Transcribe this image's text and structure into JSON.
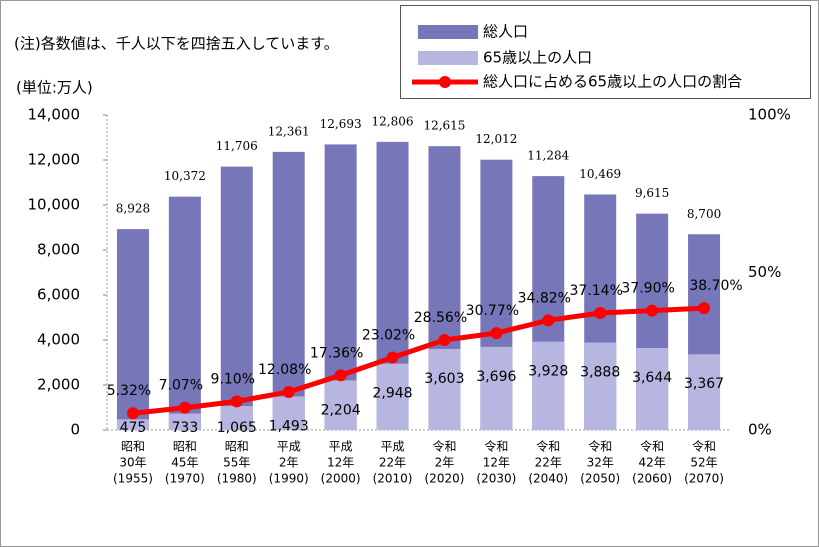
{
  "chart_data": {
    "type": "bar_line",
    "note": "(注)各数値は、千人以下を四捨五入しています。",
    "y_axis_label": "(単位:万人)",
    "categories": [
      [
        "昭和",
        "30年",
        "(1955)"
      ],
      [
        "昭和",
        "45年",
        "(1970)"
      ],
      [
        "昭和",
        "55年",
        "(1980)"
      ],
      [
        "平成",
        "2年",
        "(1990)"
      ],
      [
        "平成",
        "12年",
        "(2000)"
      ],
      [
        "平成",
        "22年",
        "(2010)"
      ],
      [
        "令和",
        "2年",
        "(2020)"
      ],
      [
        "令和",
        "12年",
        "(2030)"
      ],
      [
        "令和",
        "22年",
        "(2040)"
      ],
      [
        "令和",
        "32年",
        "(2050)"
      ],
      [
        "令和",
        "42年",
        "(2060)"
      ],
      [
        "令和",
        "52年",
        "(2070)"
      ]
    ],
    "series": [
      {
        "name": "総人口",
        "type": "bar",
        "color": "#7676b9",
        "values": [
          8928,
          10372,
          11706,
          12361,
          12693,
          12806,
          12615,
          12012,
          11284,
          10469,
          9615,
          8700
        ],
        "value_labels": [
          "8,928",
          "10,372",
          "11,706",
          "12,361",
          "12,693",
          "12,806",
          "12,615",
          "12,012",
          "11,284",
          "10,469",
          "9,615",
          "8,700"
        ]
      },
      {
        "name": "65歳以上の人口",
        "type": "bar",
        "color": "#b6b6e0",
        "values": [
          475,
          733,
          1065,
          1493,
          2204,
          2948,
          3603,
          3696,
          3928,
          3888,
          3644,
          3367
        ],
        "value_labels": [
          "475",
          "733",
          "1,065",
          "1,493",
          "2,204",
          "2,948",
          "3,603",
          "3,696",
          "3,928",
          "3,888",
          "3,644",
          "3,367"
        ]
      },
      {
        "name": "総人口に占める65歳以上の人口の割合",
        "type": "line",
        "axis": "y2",
        "color": "#ff0000",
        "values": [
          5.32,
          7.07,
          9.1,
          12.08,
          17.36,
          23.02,
          28.56,
          30.77,
          34.82,
          37.14,
          37.9,
          38.7
        ],
        "value_labels": [
          "5.32%",
          "7.07%",
          "9.10%",
          "12.08%",
          "17.36%",
          "23.02%",
          "28.56%",
          "30.77%",
          "34.82%",
          "37.14%",
          "37.90%",
          "38.70%"
        ]
      }
    ],
    "ylim": [
      0,
      14000
    ],
    "yticks": [
      0,
      {
        "value": 2000,
        "label": "2,000"
      },
      {
        "value": 4000,
        "label": "4,000"
      },
      {
        "value": 6000,
        "label": "6,000"
      },
      {
        "value": 8000,
        "label": "8,000"
      },
      {
        "value": 10000,
        "label": "10,000"
      },
      {
        "value": 12000,
        "label": "12,000"
      },
      {
        "value": 14000,
        "label": "14,000"
      }
    ],
    "y2lim": [
      0,
      100
    ],
    "y2ticks": [
      {
        "value": 0,
        "label": "0%"
      },
      {
        "value": 50,
        "label": "50%"
      },
      {
        "value": 100,
        "label": "100%"
      }
    ],
    "legend": "upper right",
    "grid": false
  }
}
